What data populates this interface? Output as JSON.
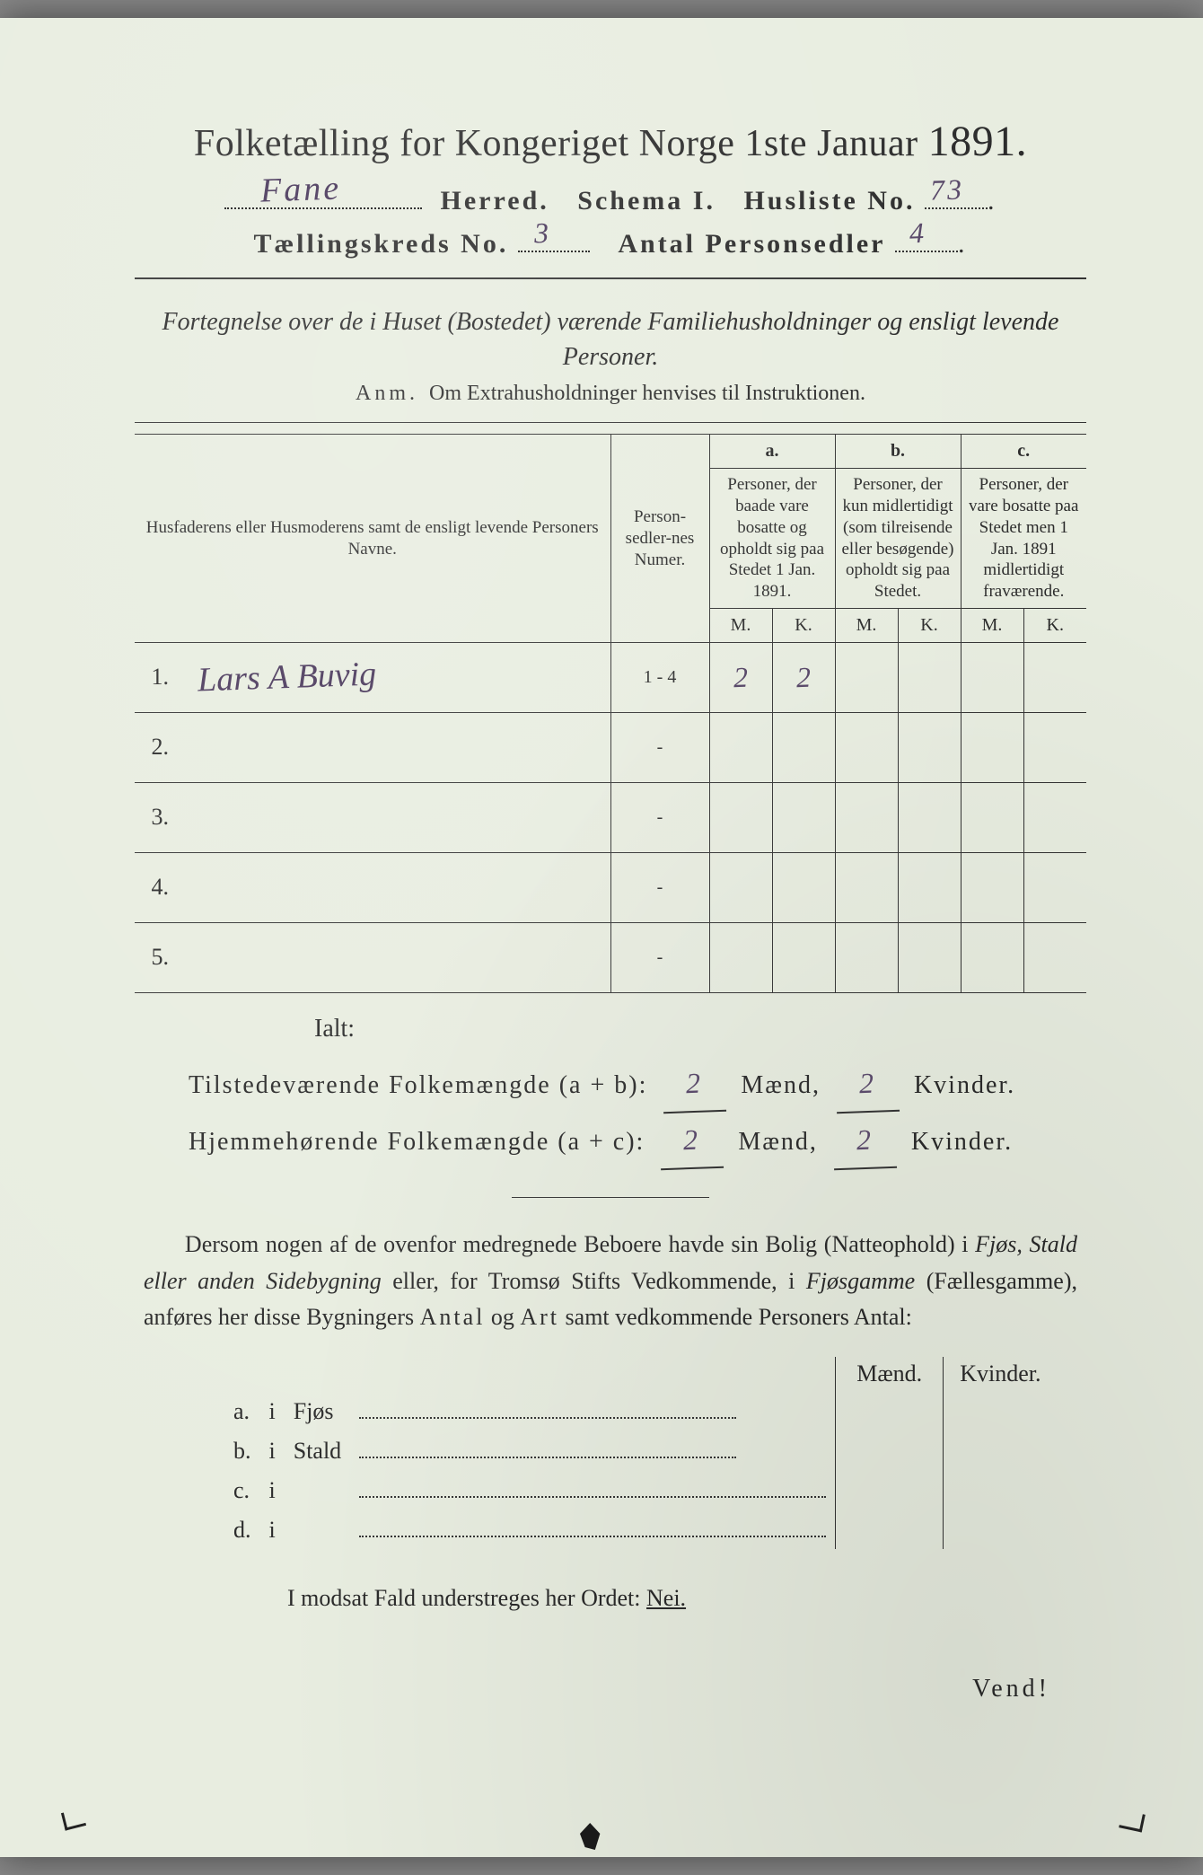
{
  "header": {
    "title_a": "Folketælling for Kongeriget Norge 1ste Januar",
    "title_year": "1891.",
    "herred_hw": "Fane",
    "herred_lbl": "Herred.",
    "schema_lbl": "Schema I.",
    "husliste_lbl": "Husliste No.",
    "husliste_hw": "73",
    "kreds_lbl": "Tællingskreds No.",
    "kreds_hw": "3",
    "antal_lbl": "Antal Personsedler",
    "antal_hw": "4"
  },
  "fortegn": "Fortegnelse over de i Huset (Bostedet) værende Familiehusholdninger og ensligt levende Personer.",
  "anm_label": "Anm.",
  "anm_text": "Om Extrahusholdninger henvises til Instruktionen.",
  "table": {
    "col_name": "Husfaderens eller Husmoderens samt de ensligt levende Personers Navne.",
    "col_pn": "Person-sedler-nes Numer.",
    "col_a_top": "a.",
    "col_a": "Personer, der baade vare bosatte og opholdt sig paa Stedet 1 Jan. 1891.",
    "col_b_top": "b.",
    "col_b": "Personer, der kun midlertidigt (som tilreisende eller besøgende) opholdt sig paa Stedet.",
    "col_c_top": "c.",
    "col_c": "Personer, der vare bosatte paa Stedet men 1 Jan. 1891 midlertidigt fraværende.",
    "M": "M.",
    "K": "K.",
    "rows": [
      {
        "n": "1.",
        "name_hw": "Lars A Buvig",
        "pn": "1 - 4",
        "aM": "2",
        "aK": "2",
        "bM": "",
        "bK": "",
        "cM": "",
        "cK": ""
      },
      {
        "n": "2.",
        "name_hw": "",
        "pn": "-",
        "aM": "",
        "aK": "",
        "bM": "",
        "bK": "",
        "cM": "",
        "cK": ""
      },
      {
        "n": "3.",
        "name_hw": "",
        "pn": "-",
        "aM": "",
        "aK": "",
        "bM": "",
        "bK": "",
        "cM": "",
        "cK": ""
      },
      {
        "n": "4.",
        "name_hw": "",
        "pn": "-",
        "aM": "",
        "aK": "",
        "bM": "",
        "bK": "",
        "cM": "",
        "cK": ""
      },
      {
        "n": "5.",
        "name_hw": "",
        "pn": "-",
        "aM": "",
        "aK": "",
        "bM": "",
        "bK": "",
        "cM": "",
        "cK": ""
      }
    ]
  },
  "ialt": "Ialt:",
  "totals": {
    "line1_a": "Tilstedeværende Folkemængde (a + b):",
    "line1_m": "2",
    "m_lbl": "Mænd,",
    "line1_k": "2",
    "k_lbl": "Kvinder.",
    "line2_a": "Hjemmehørende Folkemængde (a + c):",
    "line2_m": "2",
    "line2_k": "2"
  },
  "para": "Dersom nogen af de ovenfor medregnede Beboere havde sin Bolig (Natteophold) i Fjøs, Stald eller anden Sidebygning eller, for Tromsø Stifts Vedkommende, i Fjøsgamme (Fællesgamme), anføres her disse Bygningers Antal og Art samt vedkommende Personers Antal:",
  "fjos": {
    "head_m": "Mænd.",
    "head_k": "Kvinder.",
    "rows": [
      {
        "l": "a.",
        "i": "i",
        "t": "Fjøs"
      },
      {
        "l": "b.",
        "i": "i",
        "t": "Stald"
      },
      {
        "l": "c.",
        "i": "i",
        "t": ""
      },
      {
        "l": "d.",
        "i": "i",
        "t": ""
      }
    ]
  },
  "nei": "I modsat Fald understreges her Ordet:",
  "nei_word": "Nei.",
  "vend": "Vend!",
  "colors": {
    "paper": "#e8ede0",
    "ink": "#2a2a2a",
    "handwriting": "#5a4a6a"
  }
}
